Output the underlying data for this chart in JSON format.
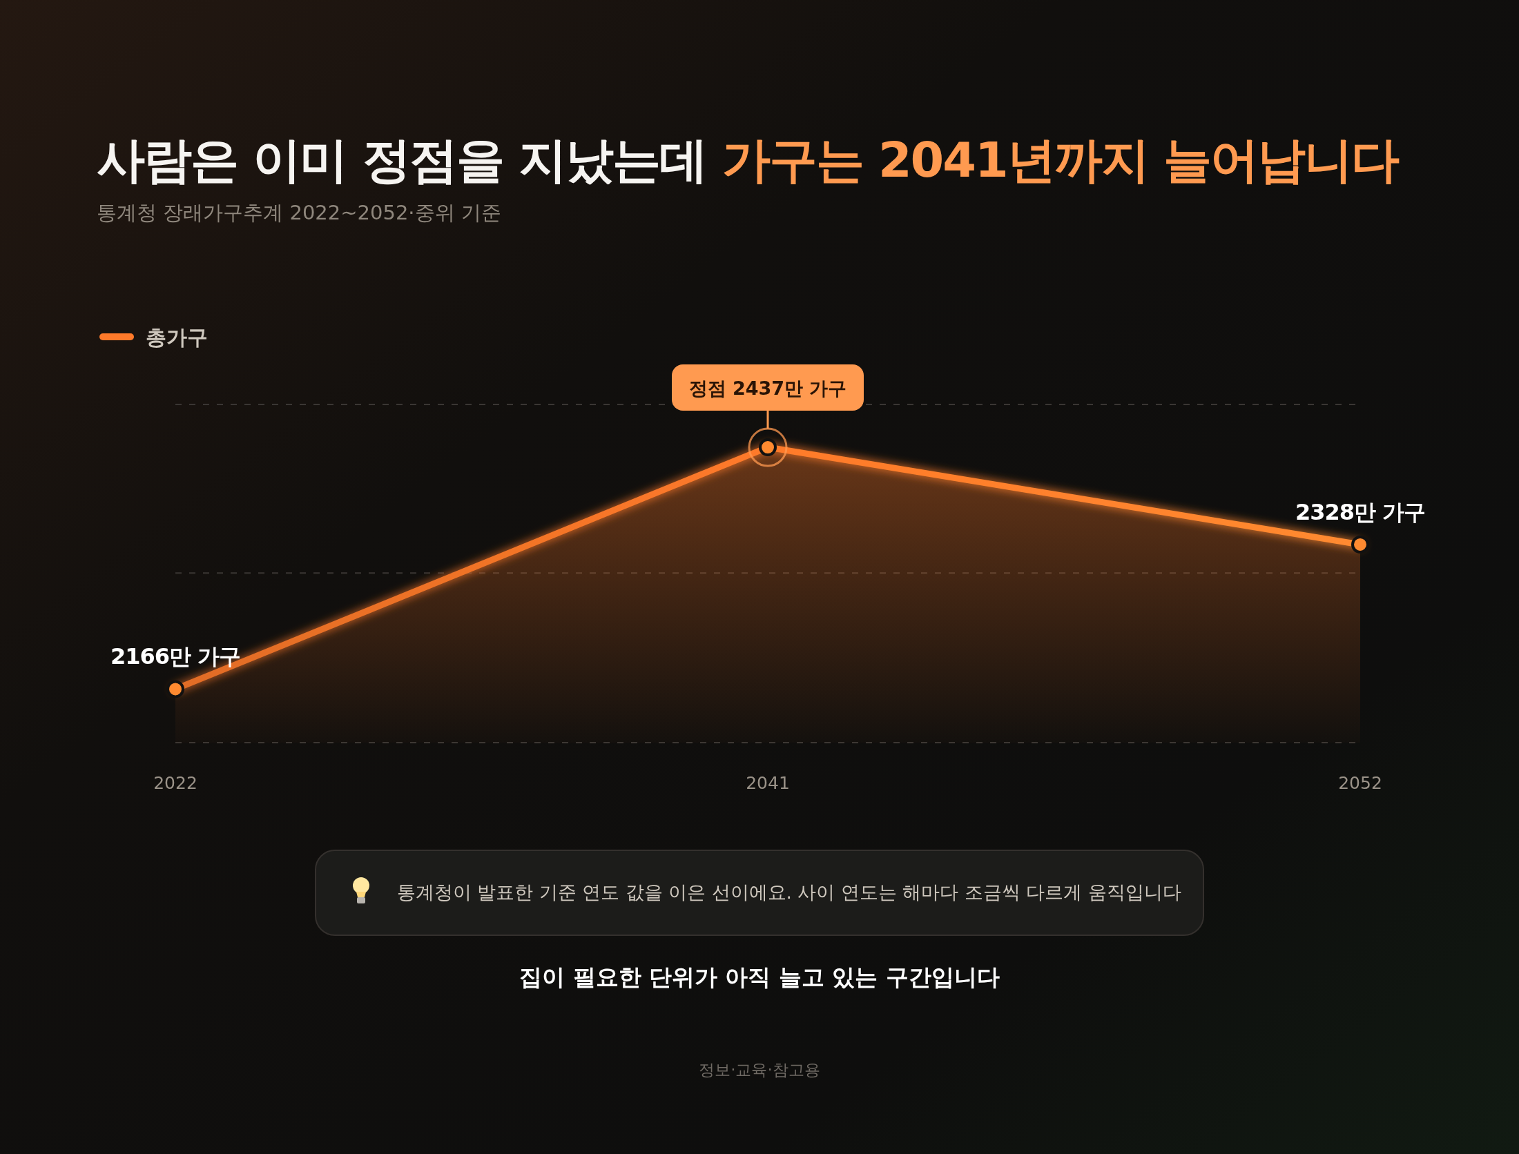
{
  "chart_data": {
    "type": "area",
    "title": "사람은 이미 정점을 지났는데 가구는 2041년까지 늘어납니다",
    "subtitle": "통계청 장래가구추계 2022~2052·중위 기준",
    "categories": [
      "2022",
      "2041",
      "2052"
    ],
    "series": [
      {
        "name": "총가구",
        "color": "#ff7a2a",
        "values": [
          2166,
          2437,
          2328
        ],
        "value_labels": [
          "2166만 가구",
          null,
          "2328만 가구"
        ]
      }
    ],
    "ylim": [
      2106,
      2485
    ],
    "yticks": [
      {
        "value": 2106,
        "label": null
      },
      {
        "value": 2296,
        "label": null
      },
      {
        "value": 2485,
        "label": null
      }
    ],
    "grid": "y",
    "tick_labels": "x",
    "legend": "top left",
    "marker": "circle",
    "annotations": [
      {
        "text": "정점 2437만 가구",
        "x": "2041",
        "y": 2437
      },
      "통계청이 발표한 기준 연도 값을 이은 선이에요. 사이 연도는 해마다 조금씩 다르게 움직입니다",
      "집이 필요한 단위가 아직 늘고 있는 구간입니다",
      "정보·교육·참고용"
    ]
  }
}
